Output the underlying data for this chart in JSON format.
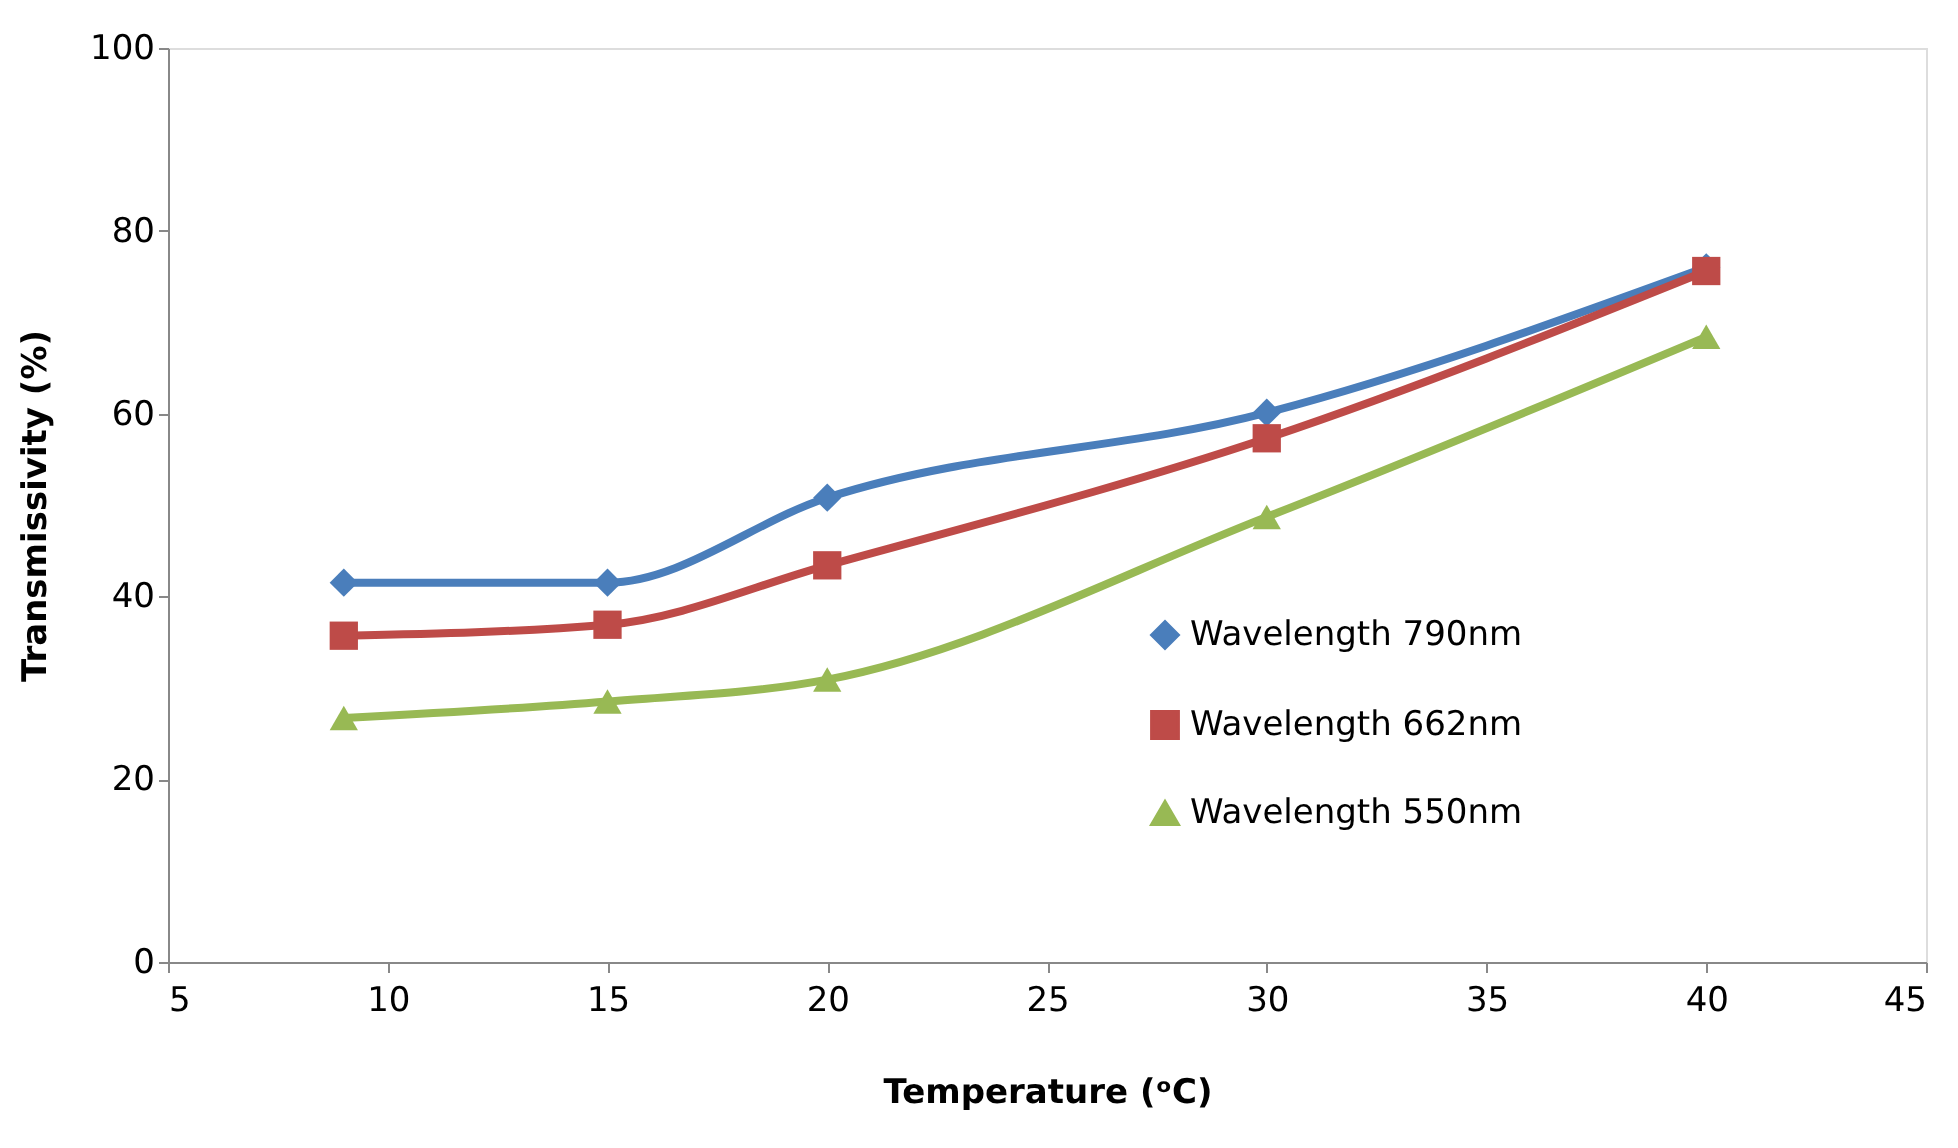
{
  "chart_data": {
    "type": "line",
    "xlabel": "Temperature (ᵒC)",
    "ylabel": "Transmissivity (%)",
    "x": [
      9,
      15,
      20,
      30,
      40
    ],
    "xlim": [
      5,
      45
    ],
    "xticks": [
      5,
      10,
      15,
      20,
      25,
      30,
      35,
      40,
      45
    ],
    "ylim": [
      0,
      100
    ],
    "yticks": [
      0,
      20,
      40,
      60,
      80,
      100
    ],
    "grid": false,
    "legend": "right",
    "line_style": "solid",
    "series": [
      {
        "name": "Wavelength 790nm",
        "color": "#4a7ebb",
        "marker": "diamond",
        "values": [
          41.5,
          41.5,
          50.8,
          60.1,
          76.0
        ]
      },
      {
        "name": "Wavelength 662nm",
        "color": "#be4b48",
        "marker": "square",
        "values": [
          35.7,
          36.9,
          43.4,
          57.3,
          75.6
        ]
      },
      {
        "name": "Wavelength 550nm",
        "color": "#98b954",
        "marker": "triangle",
        "values": [
          26.7,
          28.5,
          30.9,
          48.7,
          68.4
        ]
      }
    ]
  }
}
